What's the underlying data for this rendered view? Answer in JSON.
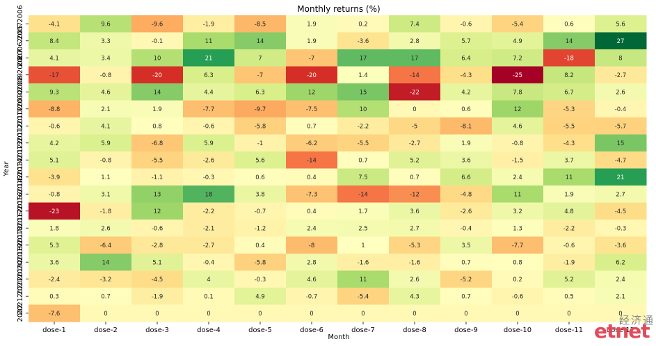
{
  "chart_data": {
    "type": "heatmap",
    "title": "Monthly returns (%)",
    "xlabel": "Month",
    "ylabel": "Year",
    "x_categories": [
      "dose-1",
      "dose-2",
      "dose-3",
      "dose-4",
      "dose-5",
      "dose-6",
      "dose-7",
      "dose-8",
      "dose-9",
      "dose-10",
      "dose-11",
      "dose-12"
    ],
    "y_categories": [
      "2005 2006",
      "2006 2007",
      "2007",
      "2008 2008",
      "2009 2009",
      "2010 2010",
      "2011 2011",
      "2012 2012",
      "2013 2013",
      "2014 2014",
      "2015 2015",
      "2016 2016",
      "2017 2017",
      "2018 2018",
      "2019 2019",
      "2020 2020",
      "2021 2021",
      "2022"
    ],
    "values": [
      [
        "-4.1",
        "9.6",
        "-9.6",
        "-1.9",
        "-8.5",
        "1.9",
        "0.2",
        "7.4",
        "-0.6",
        "-5.4",
        "0.6",
        "5.6"
      ],
      [
        "8.4",
        "3.3",
        "-0.1",
        "11",
        "14",
        "1.9",
        "-3.6",
        "2.8",
        "5.7",
        "4.9",
        "14",
        "27"
      ],
      [
        "4.1",
        "3.4",
        "10",
        "21",
        "7",
        "-7",
        "17",
        "17",
        "6.4",
        "7.2",
        "-18",
        "8"
      ],
      [
        "-17",
        "-0.8",
        "-20",
        "6.3",
        "-7",
        "-20",
        "1.4",
        "-14",
        "-4.3",
        "-25",
        "8.2",
        "-2.7"
      ],
      [
        "9.3",
        "4.6",
        "14",
        "4.4",
        "6.3",
        "12",
        "15",
        "-22",
        "4.2",
        "7.8",
        "6.7",
        "2.6"
      ],
      [
        "-8.8",
        "2.1",
        "1.9",
        "-7.7",
        "-9.7",
        "-7.5",
        "10",
        "0",
        "0.6",
        "12",
        "-5.3",
        "-0.4"
      ],
      [
        "-0.6",
        "4.1",
        "0.8",
        "-0.6",
        "-5.8",
        "0.7",
        "-2.2",
        "-5",
        "-8.1",
        "4.6",
        "-5.5",
        "-5.7"
      ],
      [
        "4.2",
        "5.9",
        "-6.8",
        "5.9",
        "-1",
        "-6.2",
        "-5.5",
        "-2.7",
        "1.9",
        "-0.8",
        "-4.3",
        "15"
      ],
      [
        "5.1",
        "-0.8",
        "-5.5",
        "-2.6",
        "5.6",
        "-14",
        "0.7",
        "5.2",
        "3.6",
        "-1.5",
        "3.7",
        "-4.7"
      ],
      [
        "-3.9",
        "1.1",
        "-1.1",
        "-0.3",
        "0.6",
        "0.4",
        "7.5",
        "0.7",
        "6.6",
        "2.4",
        "11",
        "21"
      ],
      [
        "-0.8",
        "3.1",
        "13",
        "18",
        "3.8",
        "-7.3",
        "-14",
        "-12",
        "-4.8",
        "11",
        "1.9",
        "2.7"
      ],
      [
        "-23",
        "-1.8",
        "12",
        "-2.2",
        "-0.7",
        "0.4",
        "1.7",
        "3.6",
        "-2.6",
        "3.2",
        "4.8",
        "-4.5"
      ],
      [
        "1.8",
        "2.6",
        "-0.6",
        "-2.1",
        "-1.2",
        "2.4",
        "2.5",
        "2.7",
        "-0.4",
        "1.3",
        "-2.2",
        "-0.3"
      ],
      [
        "5.3",
        "-6.4",
        "-2.8",
        "-2.7",
        "0.4",
        "-8",
        "1",
        "-5.3",
        "3.5",
        "-7.7",
        "-0.6",
        "-3.6"
      ],
      [
        "3.6",
        "14",
        "5.1",
        "-0.4",
        "-5.8",
        "2.8",
        "-1.6",
        "-1.6",
        "0.7",
        "0.8",
        "-1.9",
        "6.2"
      ],
      [
        "-2.4",
        "-3.2",
        "-4.5",
        "4",
        "-0.3",
        "4.6",
        "11",
        "2.6",
        "-5.2",
        "0.2",
        "5.2",
        "2.4"
      ],
      [
        "0.3",
        "0.7",
        "-1.9",
        "0.1",
        "4.9",
        "-0.7",
        "-5.4",
        "4.3",
        "0.7",
        "-0.6",
        "0.5",
        "2.1"
      ],
      [
        "-7.6",
        "0",
        "0",
        "0",
        "0",
        "0",
        "0",
        "0",
        "0",
        "0",
        "0",
        "0"
      ]
    ],
    "color_range": [
      -25,
      27
    ],
    "colormap": "RdYlGn",
    "grid": false
  },
  "watermark": {
    "chinese": "经济通",
    "english": "etnet"
  }
}
